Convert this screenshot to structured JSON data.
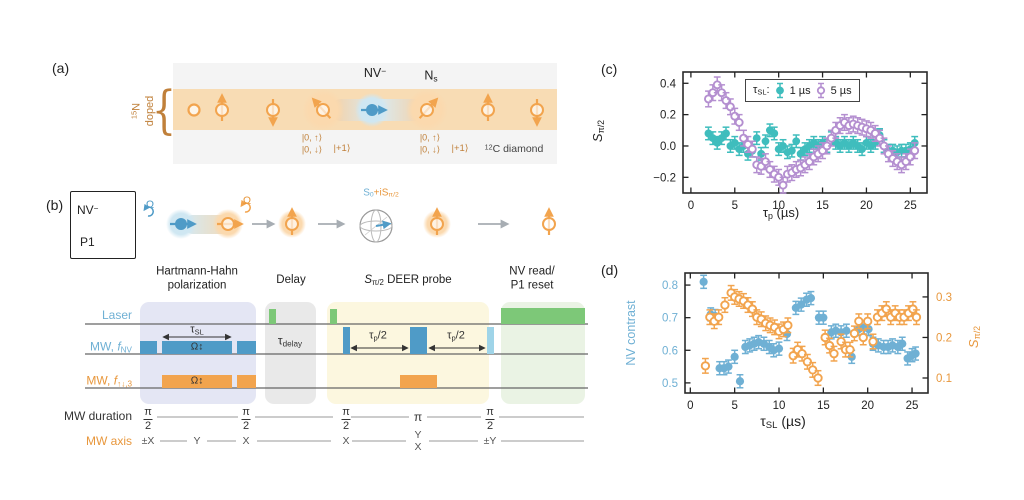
{
  "colors": {
    "teal": "#3fbdbd",
    "purple": "#b48fd0",
    "blue": "#4f9bc7",
    "lightblue": "#9fd4e8",
    "halo_blue": "#cfe7f2",
    "orange": "#f2a44e",
    "halo_orange": "#fbdcb6",
    "green": "#7dc878",
    "brown": "#c0803a",
    "label_blue": "#6fb0d4",
    "dark": "#333333",
    "lavender_box": "#e4e6f4",
    "gray_box": "#e9e9e9",
    "yellow_box": "#fcf7df",
    "green_box": "#eaf3e4",
    "band": "#f8dcb4",
    "panel_bg": "#f4f4f4"
  },
  "panel_a": {
    "label": "(a)",
    "n15_sup": "15",
    "n15_base": "N",
    "doped": "doped",
    "brace": "{",
    "nv_base": "NV",
    "nv_sup": "−",
    "ns_base": "N",
    "ns_sub": "s",
    "ket_up": "|0, ↑⟩",
    "ket_down": "|0, ↓⟩",
    "ket_plus": "|+1⟩",
    "c12_sup": "12",
    "c12_rest": "C diamond"
  },
  "panel_b": {
    "label": "(b)",
    "legend_nv_base": "NV",
    "legend_nv_sup": "−",
    "legend_p1": "P1",
    "omega": "Ω",
    "sphere_blue_base": "S",
    "sphere_blue_sub": "0",
    "sphere_orange_base": "+iS",
    "sphere_orange_sub": "π/2",
    "sec_hh_1": "Hartmann-Hahn",
    "sec_hh_2": "polarization",
    "sec_delay": "Delay",
    "sec_deer_base": "S",
    "sec_deer_sub": "π/2",
    "sec_deer_rest": " DEER probe",
    "sec_read_1": "NV read/",
    "sec_read_2": "P1 reset",
    "row_laser": "Laser",
    "row_mw_nv_pre": "MW, ",
    "row_mw_nv_base": "f",
    "row_mw_nv_sub": "NV",
    "row_mw_p1_pre": "MW, ",
    "row_mw_p1_base": "f",
    "row_mw_p1_sub": "↑↓,3",
    "row_duration": "MW duration",
    "row_axis": "MW axis",
    "tau_sl_base": "τ",
    "tau_sl_sub": "SL",
    "tau_delay_base": "τ",
    "tau_delay_sub": "delay",
    "tau_p_base": "τ",
    "tau_p_sub": "p",
    "tau_p_rest": "/2",
    "omega_lock": "Ω↕",
    "durations": [
      "π/2",
      "π/2",
      "π/2",
      "π",
      "π/2"
    ],
    "axes": [
      "±X",
      "Y",
      "X",
      "X",
      "Y|X",
      "±Y"
    ]
  },
  "panel_c": {
    "label": "(c)",
    "ylabel_base": "S",
    "ylabel_sub": "π/2",
    "xlabel_base": "τ",
    "xlabel_sub": "p",
    "xlabel_rest": " (µs)"
  },
  "panel_d": {
    "label": "(d)",
    "ylabel_left": "NV contrast",
    "ylabel_right_base": "S",
    "ylabel_right_sub": "π/2",
    "xlabel_base": "τ",
    "xlabel_sub": "SL",
    "xlabel_rest": " (µs)"
  },
  "chart_data": [
    {
      "id": "c",
      "type": "scatter",
      "title": "",
      "xlabel": "τ_p (µs)",
      "ylabel": "S_π/2",
      "xlim": [
        -0.9,
        26.9
      ],
      "ylim": [
        -0.3,
        0.472
      ],
      "xticks": [
        0,
        5,
        10,
        15,
        20,
        25
      ],
      "xtick_labels": [
        "0",
        "5",
        "10",
        "15",
        "20",
        "25"
      ],
      "ytick_vals": [
        0.4,
        0.2,
        0.0,
        -0.2
      ],
      "ytick_labels": [
        "0.4",
        "0.2",
        "0.0",
        "−0.2"
      ],
      "legend": {
        "prefix_base": "τ",
        "prefix_sub": "SL",
        "prefix_colon": ":",
        "items": [
          {
            "label": "1 µs",
            "style": "filled",
            "color_key": "teal"
          },
          {
            "label": "5 µs",
            "style": "open",
            "color_key": "purple"
          }
        ]
      },
      "series": [
        {
          "name": "1 µs",
          "marker": "filled",
          "color_key": "teal",
          "err": 0.04,
          "x": [
            2,
            2.5,
            3,
            3.5,
            4,
            4.5,
            5,
            5.5,
            6,
            6.5,
            7,
            7.5,
            8,
            8.5,
            9,
            9.5,
            10,
            10.5,
            11,
            11.5,
            12,
            12.5,
            13,
            13.5,
            14,
            14.5,
            15,
            15.5,
            16,
            16.5,
            17,
            17.5,
            18,
            18.5,
            19,
            19.5,
            20,
            20.5,
            21,
            21.5,
            22,
            22.5,
            23,
            23.5,
            24,
            24.5,
            25,
            25.5
          ],
          "y": [
            0.08,
            0.05,
            0.02,
            0.05,
            0.08,
            0.0,
            0.02,
            -0.02,
            0.0,
            -0.05,
            -0.03,
            0.05,
            -0.05,
            0.03,
            0.1,
            0.08,
            -0.02,
            0.0,
            -0.04,
            -0.03,
            0.03,
            -0.05,
            -0.02,
            0.0,
            0.02,
            0.0,
            0.02,
            0.0,
            0.05,
            0.02,
            0.0,
            0.02,
            0.0,
            0.02,
            0.0,
            -0.02,
            0.02,
            0.0,
            0.02,
            0.07,
            0.0,
            -0.03,
            -0.03,
            -0.04,
            -0.03,
            -0.03,
            -0.02,
            0.02
          ]
        },
        {
          "name": "5 µs",
          "marker": "open",
          "color_key": "purple",
          "err": 0.05,
          "x": [
            2,
            2.5,
            3,
            3.5,
            4,
            4.5,
            5,
            5.5,
            6,
            6.5,
            7,
            7.5,
            8,
            8.5,
            9,
            9.5,
            10,
            10.5,
            11,
            11.5,
            12,
            12.5,
            13,
            13.5,
            14,
            14.5,
            15,
            15.5,
            16,
            16.5,
            17,
            17.5,
            18,
            18.5,
            19,
            19.5,
            20,
            20.5,
            21,
            21.5,
            22,
            22.5,
            23,
            23.5,
            24,
            24.5,
            25,
            25.5
          ],
          "y": [
            0.3,
            0.34,
            0.39,
            0.34,
            0.29,
            0.25,
            0.19,
            0.15,
            0.05,
            0.01,
            -0.02,
            -0.12,
            -0.13,
            -0.1,
            -0.15,
            -0.18,
            -0.2,
            -0.25,
            -0.18,
            -0.17,
            -0.15,
            -0.14,
            -0.12,
            -0.1,
            -0.07,
            -0.05,
            -0.03,
            0.0,
            0.05,
            0.1,
            0.13,
            0.15,
            0.13,
            0.14,
            0.13,
            0.12,
            0.11,
            0.1,
            0.08,
            0.05,
            0.0,
            -0.05,
            -0.08,
            -0.1,
            -0.12,
            -0.1,
            -0.07,
            -0.03
          ]
        }
      ]
    },
    {
      "id": "d",
      "type": "scatter",
      "title": "",
      "xlabel": "τ_SL (µs)",
      "ylabel_left": "NV contrast",
      "ylabel_right": "S_π/2",
      "xlim": [
        -0.6,
        26.8
      ],
      "ylim_left": [
        0.469,
        0.837
      ],
      "ylim_right": [
        0.063,
        0.359
      ],
      "xticks": [
        0,
        5,
        10,
        15,
        20,
        25
      ],
      "xtick_labels": [
        "0",
        "5",
        "10",
        "15",
        "20",
        "25"
      ],
      "ytick_vals_left": [
        0.8,
        0.7,
        0.6,
        0.5
      ],
      "ytick_labels_left": [
        "0.8",
        "0.7",
        "0.6",
        "0.5"
      ],
      "ytick_vals_right": [
        0.3,
        0.2,
        0.1
      ],
      "ytick_labels_right": [
        "0.3",
        "0.2",
        "0.1"
      ],
      "series": [
        {
          "name": "NV contrast",
          "axis": "left",
          "marker": "filled",
          "color_key": "label_blue",
          "err": 0.02,
          "x": [
            1.5,
            2.3,
            2.8,
            3.3,
            3.8,
            4.3,
            5.0,
            5.6,
            6.2,
            6.7,
            7.2,
            7.7,
            8.3,
            8.9,
            9.4,
            10.0,
            10.9,
            11.9,
            12.5,
            13.1,
            13.6,
            14.5,
            15.0,
            15.9,
            16.4,
            17.0,
            17.6,
            18.2,
            19.0,
            19.6,
            20.1,
            20.6,
            21.2,
            21.8,
            22.3,
            22.8,
            23.4,
            23.9,
            24.5,
            25.0,
            25.4
          ],
          "y": [
            0.81,
            0.71,
            0.705,
            0.545,
            0.545,
            0.55,
            0.58,
            0.505,
            0.61,
            0.615,
            0.62,
            0.625,
            0.62,
            0.61,
            0.6,
            0.605,
            0.65,
            0.73,
            0.74,
            0.755,
            0.76,
            0.7,
            0.7,
            0.655,
            0.66,
            0.655,
            0.66,
            0.58,
            0.665,
            0.67,
            0.665,
            0.62,
            0.615,
            0.61,
            0.61,
            0.615,
            0.61,
            0.62,
            0.575,
            0.585,
            0.59
          ]
        },
        {
          "name": "S_π/2",
          "axis": "right",
          "marker": "open",
          "color_key": "orange",
          "err": 0.018,
          "x": [
            1.7,
            2.2,
            2.7,
            3.2,
            3.9,
            4.6,
            5.0,
            5.5,
            6.0,
            6.5,
            7.0,
            7.5,
            8.0,
            8.5,
            9.0,
            9.5,
            10.0,
            10.5,
            11.0,
            11.6,
            12.1,
            12.6,
            13.2,
            13.8,
            14.4,
            15.2,
            15.7,
            16.2,
            17.0,
            17.5,
            18.0,
            18.5,
            19.0,
            19.5,
            20.0,
            20.6,
            21.1,
            21.6,
            22.1,
            22.6,
            23.1,
            23.6,
            24.1,
            24.6,
            25.1,
            25.5
          ],
          "y": [
            0.13,
            0.25,
            0.24,
            0.25,
            0.28,
            0.31,
            0.3,
            0.295,
            0.29,
            0.28,
            0.27,
            0.25,
            0.245,
            0.235,
            0.23,
            0.225,
            0.215,
            0.22,
            0.23,
            0.155,
            0.17,
            0.16,
            0.14,
            0.12,
            0.1,
            0.2,
            0.18,
            0.16,
            0.19,
            0.17,
            0.17,
            0.21,
            0.24,
            0.2,
            0.24,
            0.19,
            0.25,
            0.26,
            0.27,
            0.25,
            0.26,
            0.25,
            0.25,
            0.26,
            0.27,
            0.25
          ]
        }
      ]
    }
  ]
}
